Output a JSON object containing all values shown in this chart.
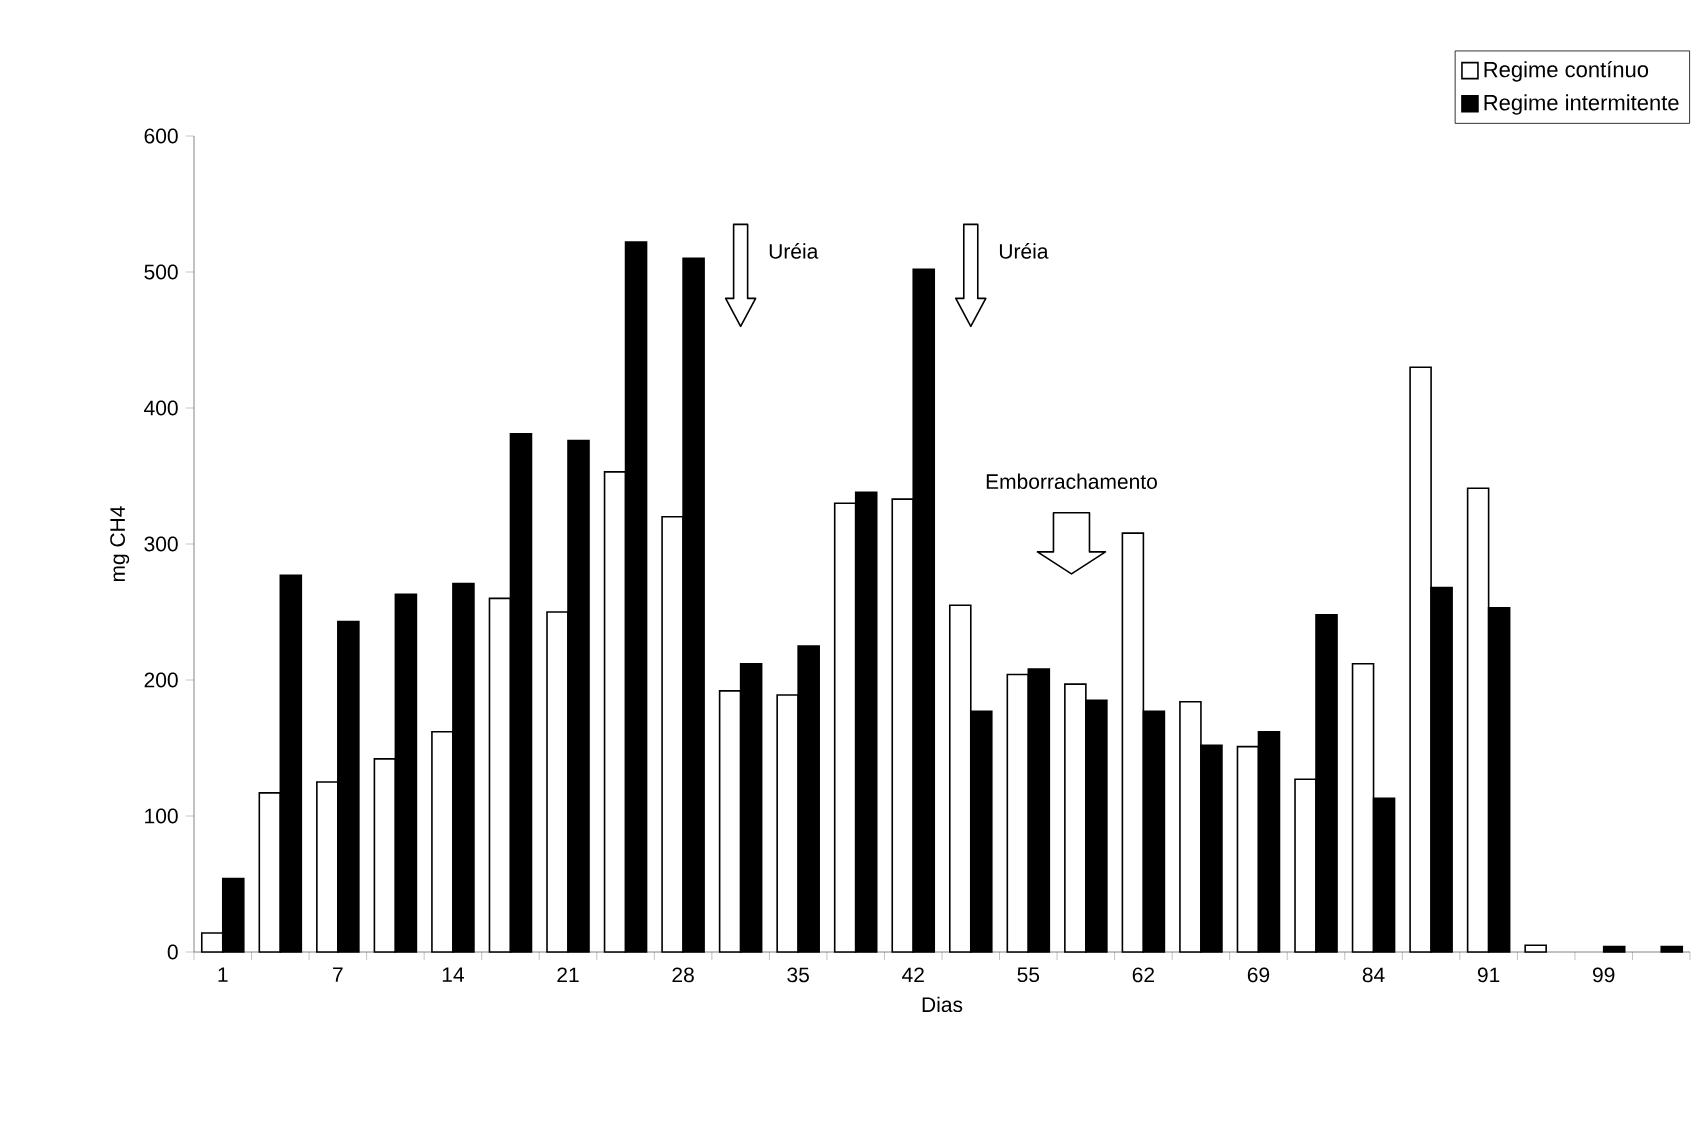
{
  "chart_data": {
    "type": "bar",
    "xlabel": "Dias",
    "ylabel": "mg CH4",
    "categories": [
      "1",
      null,
      "7",
      null,
      "14",
      null,
      "21",
      null,
      "28",
      null,
      "35",
      null,
      "42",
      null,
      "55",
      null,
      "62",
      null,
      "69",
      null,
      "84",
      null,
      "91",
      null,
      "99",
      null
    ],
    "series": [
      {
        "name": "Regime contínuo",
        "color": "#ffffff",
        "values": [
          14,
          117,
          125,
          142,
          162,
          260,
          250,
          353,
          320,
          192,
          189,
          330,
          333,
          255,
          204,
          197,
          308,
          184,
          151,
          127,
          212,
          430,
          341,
          5,
          null,
          null
        ]
      },
      {
        "name": "Regime intermitente",
        "color": "#000000",
        "values": [
          54,
          277,
          243,
          263,
          271,
          381,
          376,
          522,
          510,
          212,
          225,
          338,
          502,
          177,
          208,
          185,
          177,
          152,
          162,
          248,
          113,
          268,
          253,
          null,
          4,
          4
        ]
      }
    ],
    "ylim": [
      0,
      600
    ],
    "yticks": [
      0,
      100,
      200,
      300,
      400,
      500,
      600
    ],
    "legend": "top right",
    "annotations": [
      "Uréia",
      "Uréia",
      "Emborrachamento"
    ]
  }
}
